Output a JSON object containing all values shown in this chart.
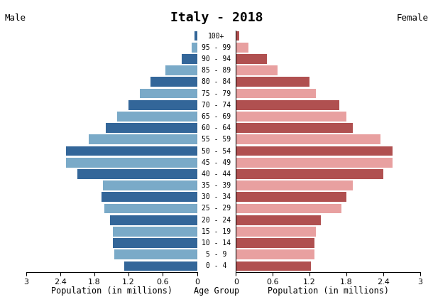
{
  "title": "Italy - 2018",
  "age_groups": [
    "0 - 4",
    "5 - 9",
    "10 - 14",
    "15 - 19",
    "20 - 24",
    "25 - 29",
    "30 - 34",
    "35 - 39",
    "40 - 44",
    "45 - 49",
    "50 - 54",
    "55 - 59",
    "60 - 64",
    "65 - 69",
    "70 - 74",
    "75 - 79",
    "80 - 84",
    "85 - 89",
    "90 - 94",
    "95 - 99",
    "100+"
  ],
  "male_values": [
    1.28,
    1.45,
    1.47,
    1.47,
    1.52,
    1.62,
    1.68,
    1.65,
    2.1,
    2.3,
    2.3,
    1.9,
    1.6,
    1.4,
    1.2,
    1.0,
    0.82,
    0.55,
    0.27,
    0.1,
    0.04
  ],
  "female_values": [
    1.22,
    1.28,
    1.28,
    1.3,
    1.38,
    1.72,
    1.8,
    1.9,
    2.4,
    2.55,
    2.55,
    2.35,
    1.9,
    1.8,
    1.68,
    1.3,
    1.2,
    0.68,
    0.5,
    0.2,
    0.05
  ],
  "male_dark_color": "#336699",
  "male_light_color": "#7aaac8",
  "female_dark_color": "#b05050",
  "female_light_color": "#e8a0a0",
  "xlim": 3.0,
  "xlabel_left": "Population (in millions)",
  "xlabel_center": "Age Group",
  "xlabel_right": "Population (in millions)",
  "label_male": "Male",
  "label_female": "Female",
  "x_ticks": [
    0.0,
    0.6,
    1.2,
    1.8,
    2.4,
    3.0
  ],
  "bar_height": 0.85,
  "title_fontsize": 13,
  "label_fontsize": 9,
  "tick_fontsize": 8,
  "age_label_fontsize": 7
}
